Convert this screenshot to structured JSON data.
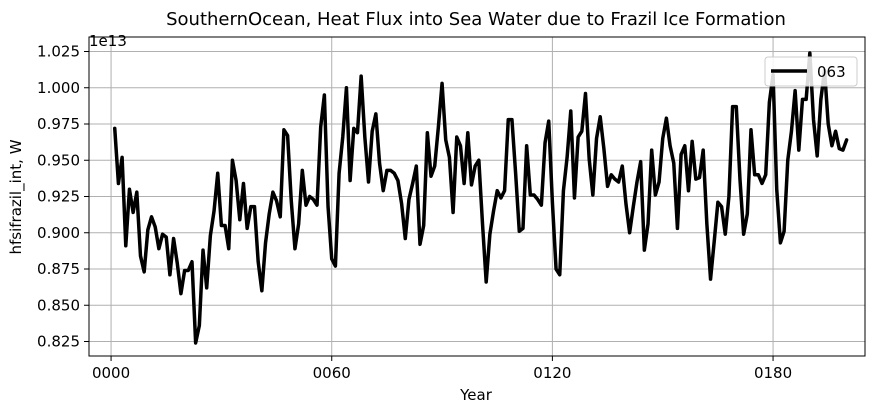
{
  "chart_data": {
    "type": "line",
    "title": "SouthernOcean, Heat Flux into Sea Water due to Frazil Ice Formation",
    "xlabel": "Year",
    "ylabel": "hfsifrazil_int, W",
    "y_offset_label": "1e13",
    "y_scale_exponent": 13,
    "xlim": [
      -6,
      205
    ],
    "ylim": [
      0.815,
      1.035
    ],
    "x_ticks": [
      0,
      60,
      120,
      180
    ],
    "x_tick_labels": [
      "0000",
      "0060",
      "0120",
      "0180"
    ],
    "y_ticks": [
      0.825,
      0.85,
      0.875,
      0.9,
      0.925,
      0.95,
      0.975,
      1.0,
      1.025
    ],
    "y_tick_labels": [
      "0.825",
      "0.850",
      "0.875",
      "0.900",
      "0.925",
      "0.950",
      "0.975",
      "1.000",
      "1.025"
    ],
    "grid": true,
    "legend_position": "top-right",
    "series": [
      {
        "name": "063",
        "color": "#000000",
        "x_start": 1,
        "x_step": 1,
        "values": [
          0.972,
          0.934,
          0.952,
          0.891,
          0.93,
          0.914,
          0.928,
          0.884,
          0.873,
          0.902,
          0.911,
          0.904,
          0.889,
          0.899,
          0.897,
          0.871,
          0.896,
          0.879,
          0.858,
          0.874,
          0.874,
          0.88,
          0.824,
          0.836,
          0.888,
          0.862,
          0.898,
          0.915,
          0.941,
          0.905,
          0.905,
          0.889,
          0.95,
          0.936,
          0.909,
          0.934,
          0.903,
          0.918,
          0.918,
          0.88,
          0.86,
          0.893,
          0.913,
          0.928,
          0.922,
          0.911,
          0.971,
          0.967,
          0.922,
          0.889,
          0.906,
          0.943,
          0.919,
          0.925,
          0.923,
          0.919,
          0.973,
          0.995,
          0.918,
          0.882,
          0.877,
          0.941,
          0.966,
          1.0,
          0.936,
          0.972,
          0.969,
          1.008,
          0.966,
          0.935,
          0.97,
          0.982,
          0.948,
          0.929,
          0.943,
          0.943,
          0.941,
          0.936,
          0.92,
          0.896,
          0.923,
          0.934,
          0.946,
          0.892,
          0.905,
          0.969,
          0.939,
          0.946,
          0.973,
          1.003,
          0.964,
          0.952,
          0.914,
          0.966,
          0.96,
          0.934,
          0.969,
          0.933,
          0.946,
          0.95,
          0.906,
          0.866,
          0.899,
          0.915,
          0.929,
          0.924,
          0.929,
          0.978,
          0.978,
          0.941,
          0.901,
          0.903,
          0.96,
          0.926,
          0.926,
          0.923,
          0.919,
          0.962,
          0.977,
          0.921,
          0.875,
          0.871,
          0.929,
          0.952,
          0.984,
          0.924,
          0.966,
          0.97,
          0.996,
          0.951,
          0.926,
          0.965,
          0.98,
          0.958,
          0.932,
          0.94,
          0.937,
          0.935,
          0.946,
          0.92,
          0.9,
          0.918,
          0.935,
          0.949,
          0.888,
          0.906,
          0.957,
          0.926,
          0.935,
          0.965,
          0.979,
          0.96,
          0.948,
          0.903,
          0.954,
          0.96,
          0.929,
          0.963,
          0.937,
          0.938,
          0.957,
          0.906,
          0.868,
          0.894,
          0.921,
          0.918,
          0.899,
          0.925,
          0.987,
          0.987,
          0.937,
          0.899,
          0.913,
          0.971,
          0.94,
          0.94,
          0.934,
          0.94,
          0.99,
          1.009,
          0.93,
          0.893,
          0.901,
          0.95,
          0.97,
          0.998,
          0.957,
          0.992,
          0.992,
          1.024,
          0.978,
          0.953,
          0.992,
          1.012,
          0.975,
          0.96,
          0.97,
          0.958,
          0.957,
          0.964
        ]
      }
    ]
  }
}
